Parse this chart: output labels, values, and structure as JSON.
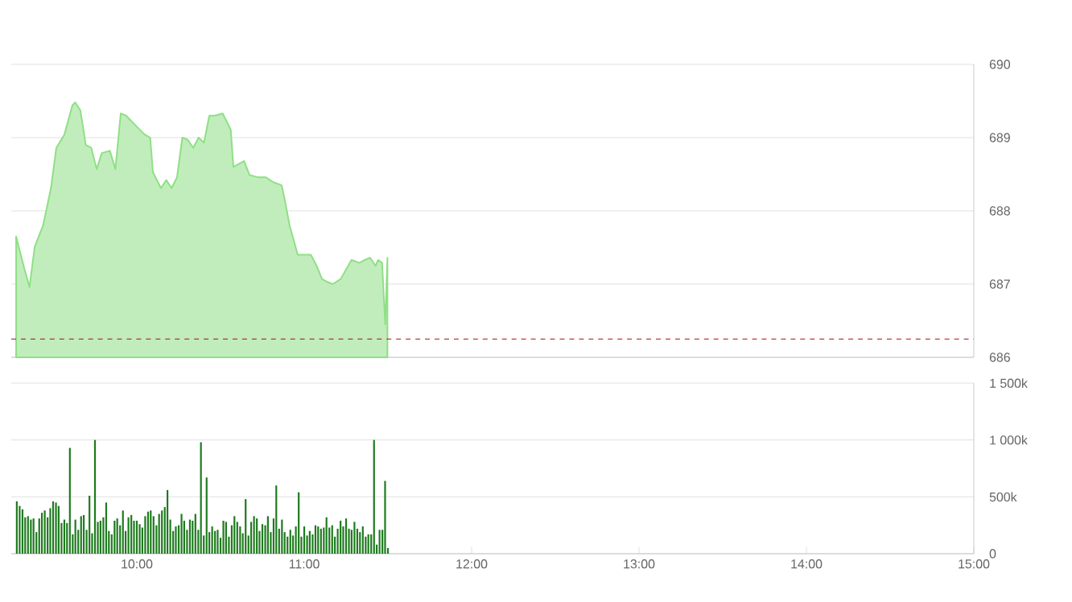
{
  "chart_data": [
    {
      "type": "area",
      "color": "#8fdf86",
      "xlim": [
        9.25,
        15
      ],
      "ylim": [
        686,
        690
      ],
      "yticks": [
        686,
        687,
        688,
        689,
        690
      ],
      "grid": "y",
      "tick_labels": "y",
      "x": [
        9.279,
        9.327,
        9.359,
        9.39,
        9.44,
        9.487,
        9.519,
        9.567,
        9.615,
        9.632,
        9.663,
        9.695,
        9.728,
        9.76,
        9.791,
        9.839,
        9.872,
        9.904,
        9.936,
        10.0,
        10.048,
        10.08,
        10.096,
        10.144,
        10.176,
        10.208,
        10.24,
        10.272,
        10.305,
        10.337,
        10.369,
        10.401,
        10.433,
        10.465,
        10.513,
        10.561,
        10.577,
        10.641,
        10.673,
        10.721,
        10.769,
        10.817,
        10.865,
        10.882,
        10.913,
        10.961,
        11.01,
        11.04,
        11.074,
        11.106,
        11.138,
        11.17,
        11.218,
        11.282,
        11.33,
        11.362,
        11.394,
        11.426,
        11.442,
        11.465,
        11.484,
        11.497
      ],
      "values": [
        687.65,
        687.22,
        686.96,
        687.51,
        687.8,
        688.31,
        688.86,
        689.04,
        689.44,
        689.48,
        689.37,
        688.9,
        688.86,
        688.57,
        688.79,
        688.82,
        688.57,
        689.33,
        689.3,
        689.15,
        689.04,
        689.0,
        688.53,
        688.31,
        688.42,
        688.31,
        688.46,
        689.0,
        688.97,
        688.86,
        689.0,
        688.93,
        689.3,
        689.3,
        689.33,
        689.11,
        688.6,
        688.68,
        688.49,
        688.46,
        688.46,
        688.39,
        688.35,
        688.17,
        687.8,
        687.4,
        687.4,
        687.4,
        687.25,
        687.07,
        687.03,
        687.0,
        687.07,
        687.33,
        687.29,
        687.33,
        687.36,
        687.25,
        687.33,
        687.29,
        686.45,
        687.36
      ],
      "ref_lines": [
        {
          "axis": "y",
          "value": 686.25,
          "color": "#a01010",
          "line_style": "dashed"
        }
      ]
    },
    {
      "type": "bar",
      "color": "#1e7b1e",
      "xlim": [
        9.25,
        15
      ],
      "ylim": [
        0,
        1500000
      ],
      "grid": "y",
      "xticks": [
        {
          "value": 10,
          "label": "10:00"
        },
        {
          "value": 11,
          "label": "11:00"
        },
        {
          "value": 12,
          "label": "12:00"
        },
        {
          "value": 13,
          "label": "13:00"
        },
        {
          "value": 14,
          "label": "14:00"
        },
        {
          "value": 15,
          "label": "15:00"
        }
      ],
      "yticks": [
        {
          "value": 0,
          "label": "0"
        },
        {
          "value": 500000,
          "label": "500k"
        },
        {
          "value": 1000000,
          "label": "1 000k"
        },
        {
          "value": 1500000,
          "label": "1 500k"
        }
      ],
      "x": [
        9.283,
        9.3,
        9.317,
        9.333,
        9.35,
        9.367,
        9.383,
        9.4,
        9.417,
        9.433,
        9.45,
        9.467,
        9.483,
        9.5,
        9.517,
        9.533,
        9.55,
        9.567,
        9.583,
        9.6,
        9.617,
        9.633,
        9.65,
        9.667,
        9.683,
        9.7,
        9.717,
        9.733,
        9.75,
        9.767,
        9.783,
        9.8,
        9.817,
        9.833,
        9.85,
        9.867,
        9.883,
        9.9,
        9.917,
        9.933,
        9.95,
        9.967,
        9.983,
        10.0,
        10.017,
        10.033,
        10.05,
        10.067,
        10.083,
        10.1,
        10.117,
        10.133,
        10.15,
        10.167,
        10.183,
        10.2,
        10.217,
        10.233,
        10.25,
        10.267,
        10.283,
        10.3,
        10.317,
        10.333,
        10.35,
        10.367,
        10.383,
        10.4,
        10.417,
        10.433,
        10.45,
        10.467,
        10.483,
        10.5,
        10.517,
        10.533,
        10.55,
        10.567,
        10.583,
        10.6,
        10.617,
        10.633,
        10.65,
        10.667,
        10.683,
        10.7,
        10.717,
        10.733,
        10.75,
        10.767,
        10.783,
        10.8,
        10.817,
        10.833,
        10.85,
        10.867,
        10.883,
        10.9,
        10.917,
        10.933,
        10.95,
        10.967,
        10.983,
        11.0,
        11.017,
        11.033,
        11.05,
        11.067,
        11.083,
        11.1,
        11.117,
        11.133,
        11.15,
        11.167,
        11.183,
        11.2,
        11.217,
        11.233,
        11.25,
        11.267,
        11.283,
        11.3,
        11.317,
        11.333,
        11.35,
        11.367,
        11.383,
        11.4,
        11.417,
        11.433,
        11.45,
        11.467,
        11.483,
        11.5
      ],
      "values": [
        460000,
        420000,
        390000,
        320000,
        330000,
        300000,
        310000,
        190000,
        310000,
        360000,
        380000,
        320000,
        400000,
        460000,
        450000,
        420000,
        270000,
        300000,
        270000,
        930000,
        170000,
        300000,
        210000,
        330000,
        340000,
        210000,
        510000,
        180000,
        1000000,
        280000,
        290000,
        320000,
        450000,
        200000,
        170000,
        290000,
        310000,
        250000,
        380000,
        200000,
        320000,
        340000,
        290000,
        290000,
        260000,
        230000,
        330000,
        370000,
        380000,
        330000,
        250000,
        350000,
        380000,
        410000,
        560000,
        300000,
        200000,
        240000,
        250000,
        350000,
        290000,
        210000,
        300000,
        290000,
        350000,
        210000,
        980000,
        160000,
        670000,
        190000,
        240000,
        200000,
        210000,
        140000,
        290000,
        280000,
        150000,
        250000,
        330000,
        280000,
        240000,
        180000,
        480000,
        160000,
        280000,
        330000,
        310000,
        200000,
        260000,
        250000,
        330000,
        190000,
        310000,
        600000,
        220000,
        300000,
        190000,
        150000,
        210000,
        160000,
        240000,
        540000,
        150000,
        240000,
        160000,
        200000,
        170000,
        250000,
        240000,
        220000,
        230000,
        320000,
        230000,
        250000,
        150000,
        220000,
        290000,
        240000,
        310000,
        220000,
        210000,
        280000,
        220000,
        190000,
        240000,
        150000,
        170000,
        170000,
        1000000,
        80000,
        210000,
        210000,
        640000,
        50000
      ]
    }
  ]
}
